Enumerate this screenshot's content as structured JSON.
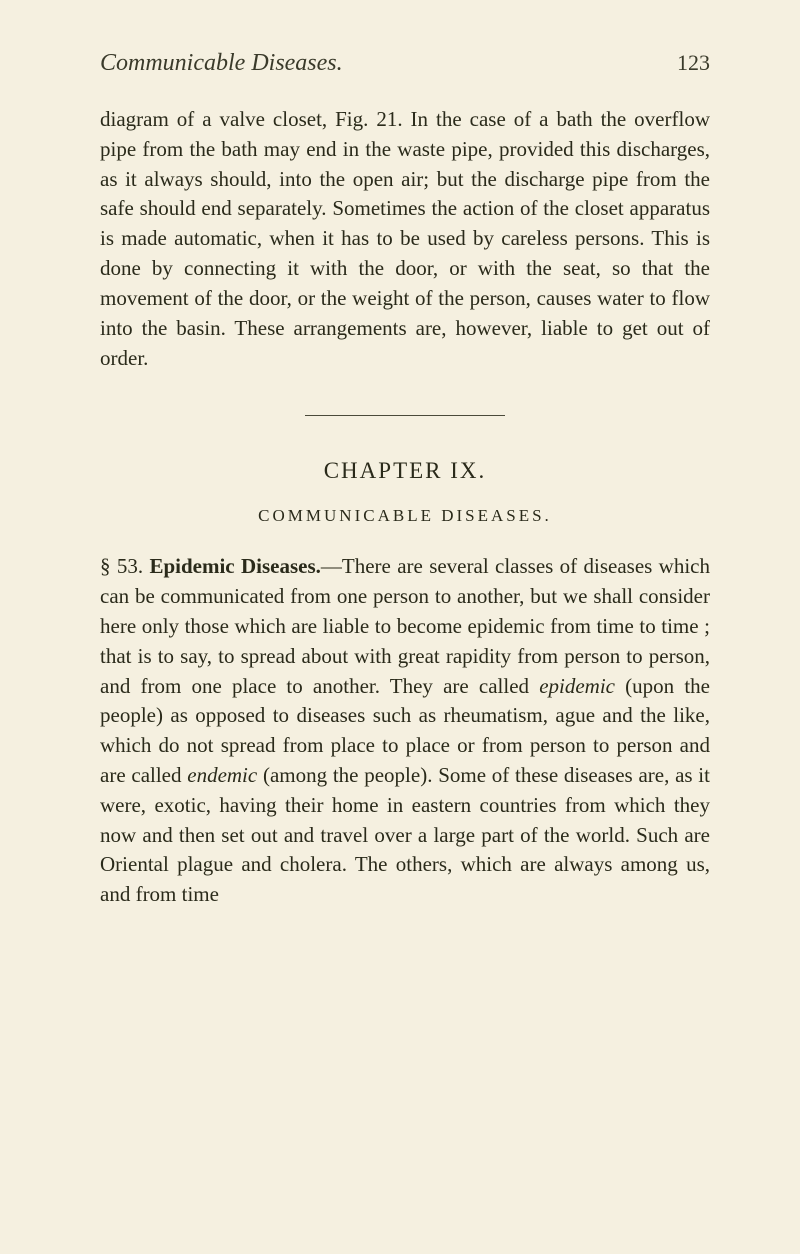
{
  "header": {
    "title": "Communicable Diseases.",
    "pageNumber": "123"
  },
  "paragraph1": "diagram of a valve closet, Fig. 21. In the case of a bath the overflow pipe from the bath may end in the waste pipe, provided this discharges, as it always should, into the open air; but the discharge pipe from the safe should end separately. Sometimes the action of the closet apparatus is made automatic, when it has to be used by careless persons. This is done by con­necting it with the door, or with the seat, so that the movement of the door, or the weight of the person, causes water to flow into the basin. These arrange­ments are, however, liable to get out of order.",
  "chapter": "CHAPTER IX.",
  "sectionTitle": "COMMUNICABLE DISEASES.",
  "para2": {
    "sectionNum": "§ 53. ",
    "boldTitle": "Epidemic Diseases.",
    "text1": "—There are several classes of diseases which can be communicated from one person to another, but we shall consider here only those which are liable to become epidemic from time to time ; that is to say, to spread about with great rapidity from person to person, and from one place to another. They are called ",
    "italic1": "epidemic",
    "text2": " (upon the people) as opposed to diseases such as rheumatism, ague and the like, which do not spread from place to place or from person to person and are called ",
    "italic2": "endemic",
    "text3": " (among the people). Some of these diseases are, as it were, exotic, having their home in eastern countries from which they now and then set out and travel over a large part of the world. Such are Oriental plague and cholera. The others, which are always among us, and from time"
  },
  "colors": {
    "background": "#f5f0e0",
    "text": "#2a2a1a",
    "headerText": "#3a3a2a",
    "divider": "#4a4a3a"
  },
  "fonts": {
    "bodySize": 21,
    "headerTitleSize": 24,
    "pageNumSize": 22,
    "chapterSize": 23,
    "sectionSize": 17
  }
}
